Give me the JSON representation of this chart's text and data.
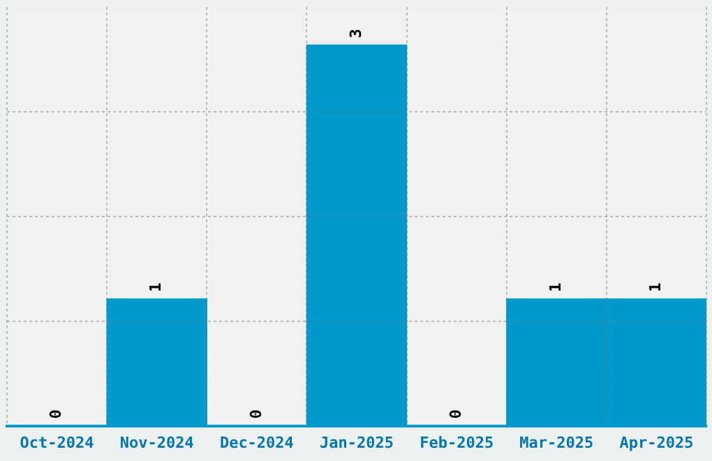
{
  "chart_data": {
    "type": "bar",
    "categories": [
      "Oct-2024",
      "Nov-2024",
      "Dec-2024",
      "Jan-2025",
      "Feb-2025",
      "Mar-2025",
      "Apr-2025"
    ],
    "values": [
      0,
      1,
      0,
      3,
      0,
      1,
      1
    ],
    "color": "#0099cc",
    "ylim": [
      0,
      3.3
    ],
    "yticks": [
      {
        "value": 0.825,
        "label": null
      },
      {
        "value": 1.65,
        "label": null
      },
      {
        "value": 2.475,
        "label": null
      }
    ],
    "tick_labels": "x",
    "data_labels": true,
    "grid": true
  }
}
